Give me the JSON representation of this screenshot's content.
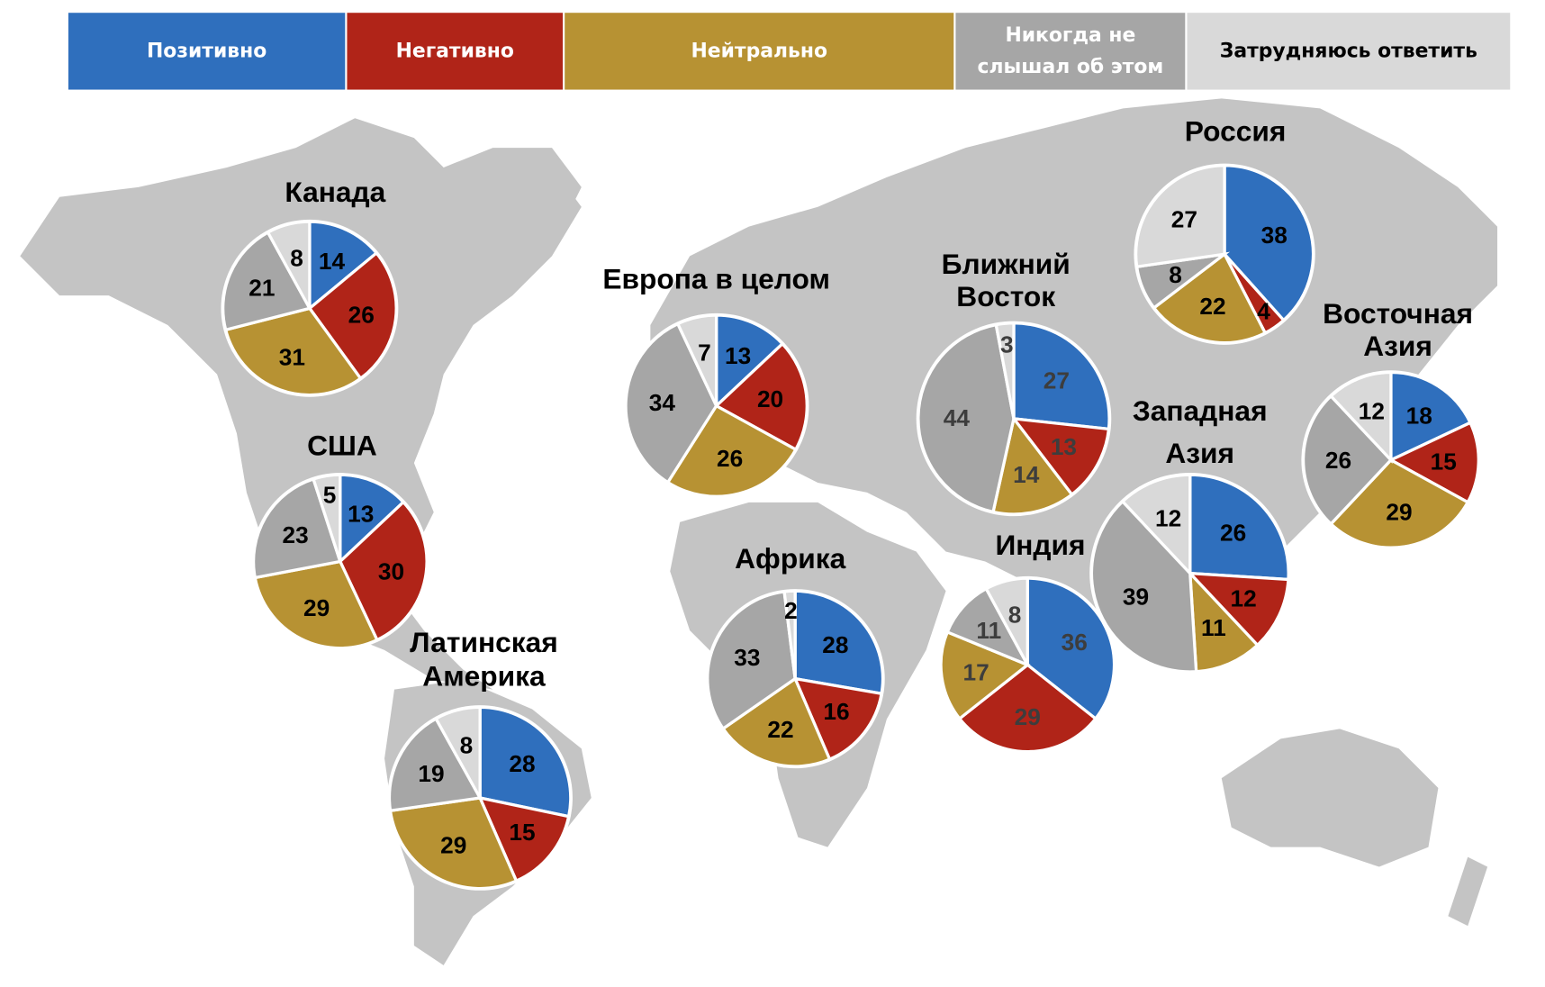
{
  "chart_data": {
    "type": "pie",
    "legend": [
      {
        "label": "Позитивно",
        "color": "#2f6fbd",
        "text_color": "#ffffff"
      },
      {
        "label": "Негативно",
        "color": "#b02418",
        "text_color": "#ffffff"
      },
      {
        "label": "Нейтрально",
        "color": "#b79233",
        "text_color": "#ffffff"
      },
      {
        "label_lines": [
          "Никогда не",
          "слышал об этом"
        ],
        "color": "#a6a6a6",
        "text_color": "#ffffff"
      },
      {
        "label": "Затрудняюсь ответить",
        "color": "#d9d9d9",
        "text_color": "#000000"
      }
    ],
    "legend_placement": "top",
    "pies": [
      {
        "title": [
          "Канада"
        ],
        "values": [
          14,
          26,
          31,
          21,
          8
        ]
      },
      {
        "title": [
          "США"
        ],
        "values": [
          13,
          30,
          29,
          23,
          5
        ]
      },
      {
        "title": [
          "Латинская",
          "Америка"
        ],
        "values": [
          28,
          15,
          29,
          19,
          8
        ]
      },
      {
        "title": [
          "Европа в целом"
        ],
        "values": [
          13,
          20,
          26,
          34,
          7
        ]
      },
      {
        "title": [
          "Африка"
        ],
        "values": [
          28,
          16,
          22,
          33,
          2
        ]
      },
      {
        "title": [
          "Ближний",
          "Восток"
        ],
        "values": [
          27,
          13,
          14,
          44,
          3
        ]
      },
      {
        "title": [
          "Индия"
        ],
        "values": [
          36,
          29,
          17,
          11,
          8
        ]
      },
      {
        "title": [
          "Россия"
        ],
        "values": [
          38,
          4,
          22,
          8,
          27
        ]
      },
      {
        "title": [
          "Западная",
          "Азия"
        ],
        "values": [
          26,
          12,
          11,
          39,
          12
        ]
      },
      {
        "title": [
          "Восточная",
          "Азия"
        ],
        "values": [
          18,
          15,
          29,
          26,
          12
        ]
      }
    ]
  }
}
